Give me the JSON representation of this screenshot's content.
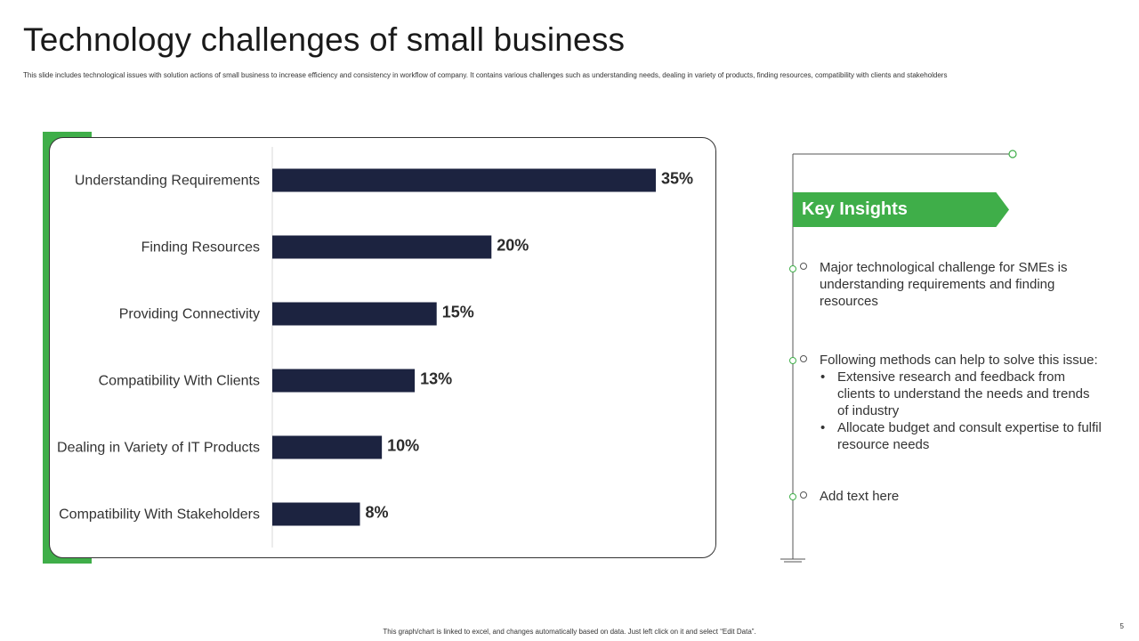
{
  "slide": {
    "title": "Technology challenges of small business",
    "subtitle": "This slide includes technological issues with solution actions of small business to increase efficiency and consistency in workflow of company. It contains various challenges such as understanding needs, dealing in variety of products, finding resources, compatibility with clients and stakeholders",
    "footer": "This graph/chart is linked to excel, and changes automatically based on data. Just left click on it and select “Edit Data”.",
    "page_number": "5",
    "accent_color": "#3fae49",
    "bar_color": "#1c2340"
  },
  "chart_data": {
    "type": "bar",
    "orientation": "horizontal",
    "categories": [
      "Understanding Requirements",
      "Finding Resources",
      "Providing Connectivity",
      "Compatibility With Clients",
      "Dealing in Variety of IT Products",
      "Compatibility With Stakeholders"
    ],
    "values": [
      35,
      20,
      15,
      13,
      10,
      8
    ],
    "value_labels": [
      "35%",
      "20%",
      "15%",
      "13%",
      "10%",
      "8%"
    ],
    "unit": "%",
    "xlim": [
      0,
      35
    ],
    "grid": false,
    "legend": "none"
  },
  "insights": {
    "heading": "Key Insights",
    "items": [
      {
        "text": "Major technological challenge for SMEs is understanding requirements and finding resources"
      },
      {
        "text": "Following methods can help to solve this issue:",
        "bullets": [
          "Extensive research and feedback from clients to understand the needs and trends of industry",
          "Allocate budget and consult expertise to fulfil resource needs"
        ]
      },
      {
        "text": "Add text here"
      }
    ]
  }
}
